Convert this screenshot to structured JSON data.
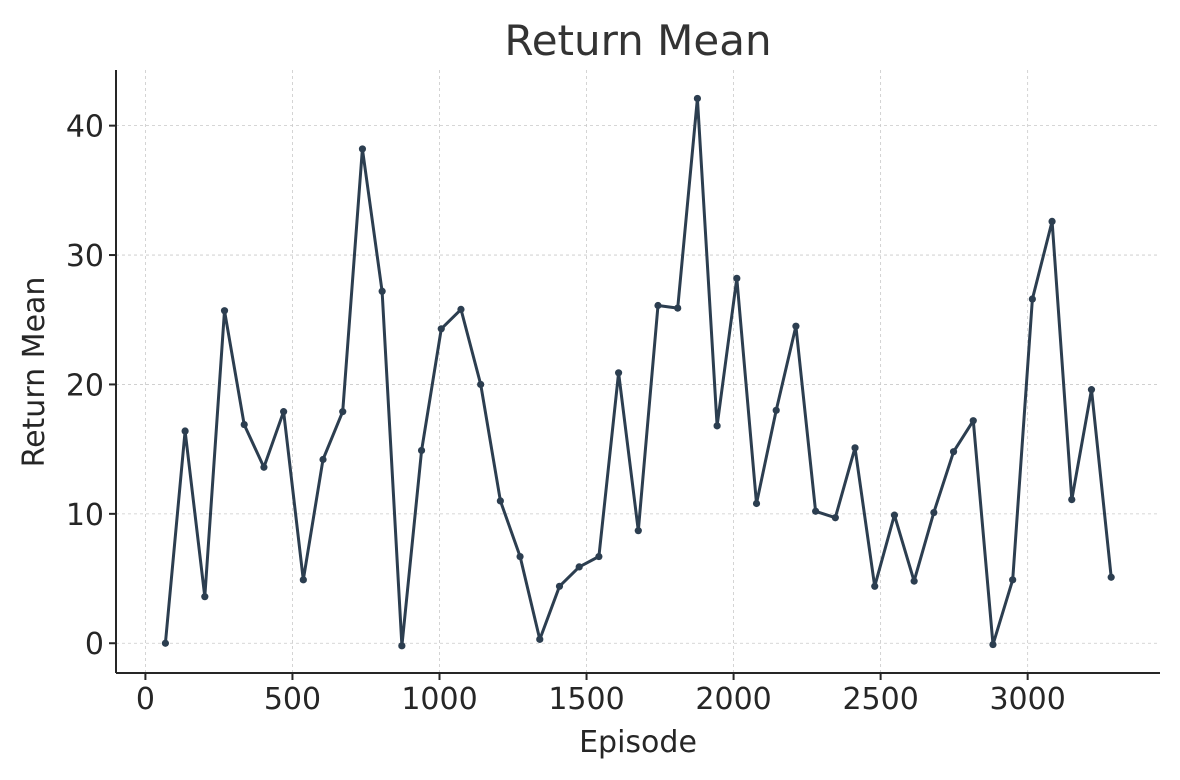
{
  "chart_data": {
    "type": "line",
    "title": "Return Mean",
    "xlabel": "Episode",
    "ylabel": "Return Mean",
    "xlim": [
      -100,
      3450
    ],
    "ylim": [
      -2.3,
      44.3
    ],
    "xticks": [
      0,
      500,
      1000,
      1500,
      2000,
      2500,
      3000
    ],
    "yticks": [
      0,
      10,
      20,
      30,
      40
    ],
    "grid": true,
    "series": [
      {
        "color": "#2c3e50",
        "marker": "circle",
        "x": [
          68,
          135,
          202,
          269,
          336,
          403,
          470,
          537,
          604,
          671,
          738,
          805,
          872,
          939,
          1006,
          1073,
          1140,
          1207,
          1274,
          1341,
          1408,
          1475,
          1542,
          1609,
          1676,
          1743,
          1810,
          1877,
          1944,
          2011,
          2078,
          2145,
          2212,
          2279,
          2346,
          2413,
          2480,
          2547,
          2614,
          2681,
          2748,
          2815,
          2882,
          2949,
          3016,
          3083,
          3150,
          3217,
          3284
        ],
        "y": [
          0.0,
          16.4,
          3.6,
          25.7,
          16.9,
          13.6,
          17.9,
          4.9,
          14.2,
          17.9,
          38.2,
          27.2,
          -0.2,
          14.9,
          24.3,
          25.8,
          20.0,
          11.0,
          6.7,
          0.3,
          4.4,
          5.9,
          6.7,
          20.9,
          8.7,
          26.1,
          25.9,
          42.1,
          16.8,
          28.2,
          10.8,
          18.0,
          24.5,
          10.2,
          9.7,
          15.1,
          4.4,
          9.9,
          4.8,
          10.1,
          14.8,
          17.2,
          -0.1,
          4.9,
          26.6,
          32.6,
          11.1,
          19.6,
          5.1
        ]
      }
    ]
  }
}
